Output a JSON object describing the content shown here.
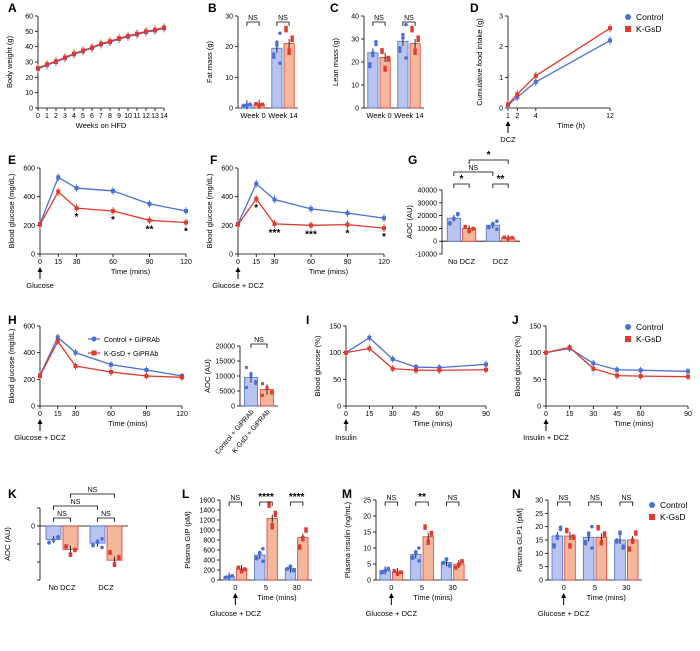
{
  "colors": {
    "control": "#4a6fd6",
    "kgsd": "#e03a2f",
    "control_fill": "#b9c4ee",
    "kgsd_fill": "#f4b79c"
  },
  "chart_data": [
    {
      "panel": "A",
      "type": "line",
      "ylabel": "Body weight (g)",
      "xlabel": "Weeks on HFD",
      "ylim": [
        0,
        60
      ],
      "yticks": [
        0,
        10,
        20,
        30,
        40,
        50,
        60
      ],
      "x": [
        0,
        1,
        2,
        3,
        4,
        5,
        6,
        7,
        8,
        9,
        10,
        11,
        12,
        13,
        14
      ],
      "xticks": [
        0,
        1,
        2,
        3,
        4,
        5,
        6,
        7,
        8,
        9,
        10,
        11,
        12,
        13,
        14
      ],
      "series": [
        {
          "name": "Control",
          "values": [
            25.5,
            28,
            30,
            32.5,
            35,
            37,
            39,
            41.5,
            43,
            45,
            46.5,
            48,
            49.5,
            50.5,
            52
          ]
        },
        {
          "name": "K-GsD",
          "values": [
            26,
            28.5,
            30.5,
            33,
            35.5,
            37.5,
            39.5,
            42,
            43.5,
            45.5,
            47,
            48.5,
            50,
            51,
            52.5
          ]
        }
      ]
    },
    {
      "panel": "B",
      "type": "bar",
      "ylabel": "Fat mass (g)",
      "ylim": [
        0,
        30
      ],
      "yticks": [
        0,
        10,
        20,
        30
      ],
      "categories": [
        "Week 0",
        "Week 14"
      ],
      "series": [
        {
          "name": "Control",
          "values": [
            1,
            19.5
          ]
        },
        {
          "name": "K-GsD",
          "values": [
            1.2,
            21
          ]
        }
      ],
      "annotations": [
        "NS",
        "NS"
      ]
    },
    {
      "panel": "C",
      "type": "bar",
      "ylabel": "Lean mass (g)",
      "ylim": [
        0,
        40
      ],
      "yticks": [
        0,
        10,
        20,
        30,
        40
      ],
      "categories": [
        "Week 0",
        "Week 14"
      ],
      "series": [
        {
          "name": "Control",
          "values": [
            24,
            29
          ]
        },
        {
          "name": "K-GsD",
          "values": [
            22,
            28
          ]
        }
      ],
      "annotations": [
        "NS",
        "NS"
      ]
    },
    {
      "panel": "D",
      "type": "line",
      "ylabel": "Cumulative food intake (g)",
      "xlabel": "Time (h)",
      "ylim": [
        0,
        3
      ],
      "yticks": [
        0,
        1,
        2,
        3
      ],
      "xticks": [
        1,
        2,
        4,
        12
      ],
      "arrow_label": "DCZ",
      "x": [
        1,
        2,
        4,
        12
      ],
      "series": [
        {
          "name": "Control",
          "values": [
            0.1,
            0.35,
            0.85,
            2.2
          ]
        },
        {
          "name": "K-GsD",
          "values": [
            0.12,
            0.45,
            1.05,
            2.6
          ]
        }
      ],
      "legend": [
        "Control",
        "K-GsD"
      ]
    },
    {
      "panel": "E",
      "type": "line",
      "ylabel": "Blood glucose (mg/dL)",
      "xlabel": "Time (mins)",
      "ylim": [
        0,
        600
      ],
      "yticks": [
        0,
        200,
        400,
        600
      ],
      "x": [
        0,
        15,
        30,
        60,
        90,
        120
      ],
      "xticks": [
        0,
        15,
        30,
        60,
        90,
        120
      ],
      "arrow_label": "Glucose",
      "series": [
        {
          "name": "Control",
          "values": [
            210,
            535,
            460,
            440,
            350,
            300
          ]
        },
        {
          "name": "K-GsD",
          "values": [
            205,
            435,
            320,
            300,
            235,
            220
          ]
        }
      ],
      "stars": [
        "",
        "",
        "*",
        "*",
        "**",
        "*"
      ]
    },
    {
      "panel": "F",
      "type": "line",
      "ylabel": "Blood glucose (mg/dL)",
      "xlabel": "Time (mins)",
      "ylim": [
        0,
        600
      ],
      "yticks": [
        0,
        200,
        400,
        600
      ],
      "x": [
        0,
        15,
        30,
        60,
        90,
        120
      ],
      "xticks": [
        0,
        15,
        30,
        60,
        90,
        120
      ],
      "arrow_label": "Glucose + DCZ",
      "series": [
        {
          "name": "Control",
          "values": [
            210,
            490,
            380,
            315,
            285,
            250
          ]
        },
        {
          "name": "K-GsD",
          "values": [
            205,
            385,
            210,
            200,
            205,
            180
          ]
        }
      ],
      "stars": [
        "",
        "*",
        "***",
        "***",
        "*",
        "*"
      ]
    },
    {
      "panel": "G",
      "type": "bar",
      "ylabel": "AOC (AU)",
      "ylim": [
        -10000,
        40000
      ],
      "yticks": [
        -10000,
        0,
        10000,
        20000,
        30000,
        40000
      ],
      "ytick_labels": [
        "-10000",
        "0",
        "10000",
        "20000",
        "30000",
        "40000"
      ],
      "categories": [
        "No DCZ",
        "DCZ"
      ],
      "series": [
        {
          "name": "Control",
          "values": [
            18000,
            12500
          ]
        },
        {
          "name": "K-GsD",
          "values": [
            10000,
            2500
          ]
        }
      ],
      "annotations": [
        "*",
        "**",
        "NS",
        "*"
      ]
    },
    {
      "panel": "H",
      "type": "line",
      "ylabel": "Blood glucose (mg/dL)",
      "xlabel": "Time (mins)",
      "ylim": [
        0,
        600
      ],
      "yticks": [
        0,
        200,
        400,
        600
      ],
      "x": [
        0,
        15,
        30,
        60,
        90,
        120
      ],
      "xticks": [
        0,
        15,
        30,
        60,
        90,
        120
      ],
      "arrow_label": "Glucose + DCZ",
      "series": [
        {
          "name": "Control + GiPRAb",
          "values": [
            230,
            515,
            400,
            310,
            270,
            225
          ]
        },
        {
          "name": "K-GsD + GiPRAb",
          "values": [
            225,
            485,
            300,
            255,
            225,
            215
          ]
        }
      ],
      "legend": [
        "Control + GiPRAb",
        "K-GsD + GiPRAb"
      ]
    },
    {
      "panel": "H2",
      "type": "bar",
      "ylabel": "AOC (AU)",
      "ylim": [
        0,
        20000
      ],
      "yticks": [
        0,
        5000,
        10000,
        15000,
        20000
      ],
      "categories": [
        "Control + GiPRAb",
        "K-GsD + GiPRAb"
      ],
      "values": [
        9500,
        5500
      ],
      "annotations": [
        "NS"
      ]
    },
    {
      "panel": "I",
      "type": "line",
      "ylabel": "Blood glucose (%)",
      "xlabel": "Time (mins)",
      "ylim": [
        0,
        150
      ],
      "yticks": [
        0,
        50,
        100,
        150
      ],
      "x": [
        0,
        15,
        30,
        45,
        60,
        90
      ],
      "xticks": [
        0,
        15,
        30,
        45,
        60,
        90
      ],
      "arrow_label": "Insulin",
      "series": [
        {
          "name": "Control",
          "values": [
            100,
            128,
            88,
            73,
            72,
            78
          ]
        },
        {
          "name": "K-GsD",
          "values": [
            100,
            108,
            70,
            67,
            67,
            68
          ]
        }
      ]
    },
    {
      "panel": "J",
      "type": "line",
      "ylabel": "Blood glucose (%)",
      "xlabel": "Time (mins)",
      "ylim": [
        0,
        150
      ],
      "yticks": [
        0,
        50,
        100,
        150
      ],
      "x": [
        0,
        15,
        30,
        45,
        60,
        90
      ],
      "xticks": [
        0,
        15,
        30,
        45,
        60,
        90
      ],
      "arrow_label": "Insulin + DCZ",
      "series": [
        {
          "name": "Control",
          "values": [
            100,
            108,
            80,
            68,
            67,
            65
          ]
        },
        {
          "name": "K-GsD",
          "values": [
            100,
            110,
            70,
            57,
            56,
            55
          ]
        }
      ],
      "legend": [
        "Control",
        "K-GsD"
      ]
    },
    {
      "panel": "K",
      "type": "bar",
      "ylabel": "AOC (AU)",
      "ylim": [
        -6000,
        2000
      ],
      "yticks": [
        -6000,
        -4000,
        -2000,
        0,
        2000
      ],
      "ytick_labels": [
        "",
        "",
        "",
        "0",
        ""
      ],
      "categories": [
        "No DCZ",
        "DCZ"
      ],
      "series": [
        {
          "name": "Control",
          "values": [
            -1500,
            -1900
          ]
        },
        {
          "name": "K-GsD",
          "values": [
            -2600,
            -3800
          ]
        }
      ],
      "annotations": [
        "NS",
        "NS",
        "NS",
        "NS"
      ]
    },
    {
      "panel": "L",
      "type": "bar",
      "ylabel": "Plasma GIP (pM)",
      "xlabel": "Time (mins)",
      "ylim": [
        0,
        1600
      ],
      "yticks": [
        0,
        200,
        400,
        600,
        800,
        1000,
        1200,
        1400,
        1600
      ],
      "categories": [
        "0",
        "5",
        "30"
      ],
      "arrow_label": "Glucose + DCZ",
      "series": [
        {
          "name": "Control",
          "values": [
            70,
            500,
            230
          ]
        },
        {
          "name": "K-GsD",
          "values": [
            220,
            1230,
            850
          ]
        }
      ],
      "annotations": [
        "NS",
        "****",
        "****"
      ]
    },
    {
      "panel": "M",
      "type": "bar",
      "ylabel": "Plasma insulin (ng/mL)",
      "xlabel": "Time (mins)",
      "ylim": [
        0,
        25
      ],
      "yticks": [
        0,
        5,
        10,
        15,
        20,
        25
      ],
      "categories": [
        "0",
        "5",
        "30"
      ],
      "arrow_label": "Glucose + DCZ",
      "series": [
        {
          "name": "Control",
          "values": [
            3,
            8,
            5.5
          ]
        },
        {
          "name": "K-GsD",
          "values": [
            2.5,
            13.5,
            5
          ]
        }
      ],
      "annotations": [
        "NS",
        "**",
        "NS"
      ]
    },
    {
      "panel": "N",
      "type": "bar",
      "ylabel": "Plasma GLP1 (pM)",
      "xlabel": "Time (mins)",
      "ylim": [
        0,
        30
      ],
      "yticks": [
        0,
        5,
        10,
        15,
        20,
        25,
        30
      ],
      "categories": [
        "0",
        "5",
        "30"
      ],
      "arrow_label": "Glucose + DCZ",
      "series": [
        {
          "name": "Control",
          "values": [
            16.5,
            16,
            15
          ]
        },
        {
          "name": "K-GsD",
          "values": [
            16.5,
            16,
            15
          ]
        }
      ],
      "annotations": [
        "NS",
        "NS",
        "NS"
      ],
      "legend": [
        "Control",
        "K-GsD"
      ]
    }
  ]
}
